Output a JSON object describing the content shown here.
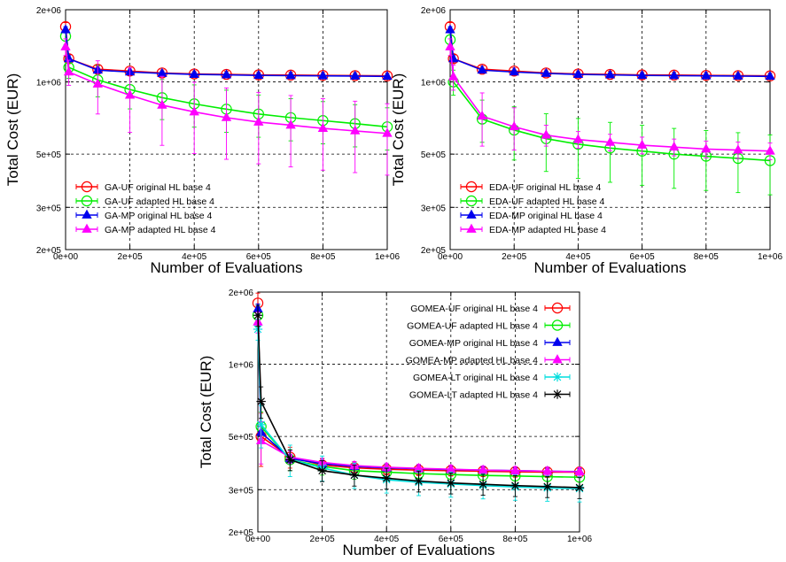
{
  "chart_data": [
    {
      "id": "ga",
      "type": "line",
      "xlabel": "Number of Evaluations",
      "ylabel": "Total Cost (EUR)",
      "y_log_scale": true,
      "xlim": [
        0,
        1000000
      ],
      "ylim": [
        200000,
        2000000
      ],
      "x_ticks": [
        "0e+00",
        "2e+05",
        "4e+05",
        "6e+05",
        "8e+05",
        "1e+06"
      ],
      "y_ticks": [
        {
          "v": 200000,
          "label": "2e+05"
        },
        {
          "v": 300000,
          "label": "3e+05"
        },
        {
          "v": 500000,
          "label": "5e+05"
        },
        {
          "v": 1000000,
          "label": "1e+06"
        },
        {
          "v": 2000000,
          "label": "2e+06"
        }
      ],
      "grid": true,
      "legend_position": "bottom-left",
      "legend_line_then_text": true,
      "x": [
        0,
        10000,
        100000,
        200000,
        300000,
        400000,
        500000,
        600000,
        700000,
        800000,
        900000,
        1000000
      ],
      "series": [
        {
          "name": "GA-UF original HL base 4",
          "color": "#ff0000",
          "marker": "circle",
          "values": [
            1700000,
            1250000,
            1130000,
            1110000,
            1090000,
            1080000,
            1075000,
            1070000,
            1068000,
            1065000,
            1063000,
            1060000
          ],
          "err": [
            0.04,
            0.04,
            0.03,
            0.03,
            0.03,
            0.03,
            0.03,
            0.03,
            0.03,
            0.03,
            0.03,
            0.03
          ]
        },
        {
          "name": "GA-UF adapted HL base 4",
          "color": "#00ee00",
          "marker": "circle",
          "values": [
            1550000,
            1150000,
            1020000,
            930000,
            860000,
            810000,
            770000,
            735000,
            710000,
            690000,
            670000,
            650000
          ],
          "err": [
            0.08,
            0.1,
            0.15,
            0.17,
            0.19,
            0.2,
            0.2,
            0.2,
            0.2,
            0.2,
            0.2,
            0.2
          ]
        },
        {
          "name": "GA-MP original HL base 4",
          "color": "#0000ee",
          "marker": "triangle",
          "values": [
            1650000,
            1250000,
            1120000,
            1100000,
            1085000,
            1075000,
            1070000,
            1065000,
            1062000,
            1060000,
            1058000,
            1055000
          ],
          "err": [
            0.03,
            0.03,
            0.02,
            0.02,
            0.02,
            0.02,
            0.02,
            0.02,
            0.02,
            0.02,
            0.02,
            0.02
          ]
        },
        {
          "name": "GA-MP adapted HL base 4",
          "color": "#ff00ff",
          "marker": "triangle",
          "values": [
            1400000,
            1100000,
            980000,
            880000,
            800000,
            750000,
            710000,
            680000,
            660000,
            640000,
            625000,
            610000
          ],
          "err": [
            0.08,
            0.12,
            0.25,
            0.3,
            0.32,
            0.33,
            0.33,
            0.33,
            0.33,
            0.33,
            0.33,
            0.33
          ]
        }
      ]
    },
    {
      "id": "eda",
      "type": "line",
      "xlabel": "Number of Evaluations",
      "ylabel": "Total Cost (EUR)",
      "y_log_scale": true,
      "xlim": [
        0,
        1000000
      ],
      "ylim": [
        200000,
        2000000
      ],
      "x_ticks": [
        "0e+00",
        "2e+05",
        "4e+05",
        "6e+05",
        "8e+05",
        "1e+06"
      ],
      "y_ticks": [
        {
          "v": 200000,
          "label": "2e+05"
        },
        {
          "v": 300000,
          "label": "3e+05"
        },
        {
          "v": 500000,
          "label": "5e+05"
        },
        {
          "v": 1000000,
          "label": "1e+06"
        },
        {
          "v": 2000000,
          "label": "2e+06"
        }
      ],
      "grid": true,
      "legend_position": "bottom-left",
      "legend_line_then_text": true,
      "x": [
        0,
        10000,
        100000,
        200000,
        300000,
        400000,
        500000,
        600000,
        700000,
        800000,
        900000,
        1000000
      ],
      "series": [
        {
          "name": "EDA-UF original HL base 4",
          "color": "#ff0000",
          "marker": "circle",
          "values": [
            1700000,
            1250000,
            1130000,
            1110000,
            1090000,
            1080000,
            1075000,
            1070000,
            1068000,
            1065000,
            1063000,
            1060000
          ],
          "err": [
            0.04,
            0.04,
            0.03,
            0.03,
            0.03,
            0.03,
            0.03,
            0.03,
            0.03,
            0.03,
            0.03,
            0.03
          ]
        },
        {
          "name": "EDA-UF adapted HL base 4",
          "color": "#00ee00",
          "marker": "circle",
          "values": [
            1500000,
            1000000,
            700000,
            630000,
            580000,
            550000,
            530000,
            515000,
            500000,
            490000,
            480000,
            470000
          ],
          "err": [
            0.08,
            0.12,
            0.2,
            0.25,
            0.27,
            0.28,
            0.28,
            0.28,
            0.28,
            0.28,
            0.28,
            0.28
          ]
        },
        {
          "name": "EDA-MP original HL base 4",
          "color": "#0000ee",
          "marker": "triangle",
          "values": [
            1650000,
            1250000,
            1120000,
            1100000,
            1085000,
            1075000,
            1070000,
            1065000,
            1062000,
            1060000,
            1058000,
            1055000
          ],
          "err": [
            0.03,
            0.03,
            0.02,
            0.02,
            0.02,
            0.02,
            0.02,
            0.02,
            0.02,
            0.02,
            0.02,
            0.02
          ]
        },
        {
          "name": "EDA-MP adapted HL base 4",
          "color": "#ff00ff",
          "marker": "triangle",
          "values": [
            1400000,
            1050000,
            720000,
            650000,
            600000,
            575000,
            560000,
            545000,
            535000,
            525000,
            520000,
            515000
          ],
          "err": [
            0.08,
            0.12,
            0.25,
            0.2,
            0.1,
            0.08,
            0.08,
            0.08,
            0.08,
            0.08,
            0.08,
            0.08
          ]
        }
      ]
    },
    {
      "id": "gomea",
      "type": "line",
      "xlabel": "Number of Evaluations",
      "ylabel": "Total Cost (EUR)",
      "y_log_scale": true,
      "xlim": [
        0,
        1000000
      ],
      "ylim": [
        200000,
        2000000
      ],
      "x_ticks": [
        "0e+00",
        "2e+05",
        "4e+05",
        "6e+05",
        "8e+05",
        "1e+06"
      ],
      "y_ticks": [
        {
          "v": 200000,
          "label": "2e+05"
        },
        {
          "v": 300000,
          "label": "3e+05"
        },
        {
          "v": 500000,
          "label": "5e+05"
        },
        {
          "v": 1000000,
          "label": "1e+06"
        },
        {
          "v": 2000000,
          "label": "2e+06"
        }
      ],
      "grid": true,
      "legend_position": "top-right",
      "legend_line_then_text": false,
      "x": [
        0,
        10000,
        100000,
        200000,
        300000,
        400000,
        500000,
        600000,
        700000,
        800000,
        900000,
        1000000
      ],
      "series": [
        {
          "name": "GOMEA-UF original HL base 4",
          "color": "#ff0000",
          "marker": "circle",
          "values": [
            1800000,
            500000,
            410000,
            380000,
            370000,
            365000,
            362000,
            360000,
            358000,
            356000,
            355000,
            355000
          ],
          "err": [
            0.1,
            0.25,
            0.1,
            0.06,
            0.06,
            0.05,
            0.05,
            0.05,
            0.05,
            0.05,
            0.05,
            0.05
          ]
        },
        {
          "name": "GOMEA-UF adapted HL base 4",
          "color": "#00ee00",
          "marker": "circle",
          "values": [
            1600000,
            550000,
            400000,
            375000,
            360000,
            355000,
            350000,
            347000,
            344000,
            342000,
            340000,
            338000
          ],
          "err": [
            0.1,
            0.15,
            0.1,
            0.08,
            0.08,
            0.08,
            0.08,
            0.08,
            0.08,
            0.08,
            0.08,
            0.08
          ]
        },
        {
          "name": "GOMEA-MP original HL base 4",
          "color": "#0000ee",
          "marker": "triangle",
          "values": [
            1700000,
            520000,
            405000,
            385000,
            375000,
            370000,
            367000,
            364000,
            362000,
            360000,
            358000,
            357000
          ],
          "err": [
            0.05,
            0.06,
            0.04,
            0.03,
            0.03,
            0.03,
            0.03,
            0.03,
            0.03,
            0.03,
            0.03,
            0.03
          ]
        },
        {
          "name": "GOMEA-MP adapted HL base 4",
          "color": "#ff00ff",
          "marker": "triangle",
          "values": [
            1500000,
            480000,
            410000,
            390000,
            378000,
            372000,
            368000,
            365000,
            362000,
            360000,
            358000,
            356000
          ],
          "err": [
            0.1,
            0.2,
            0.06,
            0.04,
            0.04,
            0.04,
            0.04,
            0.04,
            0.04,
            0.04,
            0.04,
            0.04
          ]
        },
        {
          "name": "GOMEA-LT original HL base 4",
          "color": "#00dddd",
          "marker": "asterisk",
          "values": [
            1400000,
            560000,
            400000,
            370000,
            345000,
            330000,
            322000,
            317000,
            312000,
            308000,
            305000,
            303000
          ],
          "err": [
            0.1,
            0.2,
            0.15,
            0.12,
            0.12,
            0.12,
            0.12,
            0.12,
            0.12,
            0.12,
            0.12,
            0.12
          ]
        },
        {
          "name": "GOMEA-LT adapted HL base 4",
          "color": "#000000",
          "marker": "asterisk",
          "values": [
            1600000,
            700000,
            400000,
            360000,
            345000,
            335000,
            326000,
            320000,
            316000,
            312000,
            309000,
            306000
          ],
          "err": [
            0.1,
            0.15,
            0.1,
            0.1,
            0.1,
            0.1,
            0.1,
            0.1,
            0.1,
            0.1,
            0.1,
            0.1
          ]
        }
      ]
    }
  ]
}
